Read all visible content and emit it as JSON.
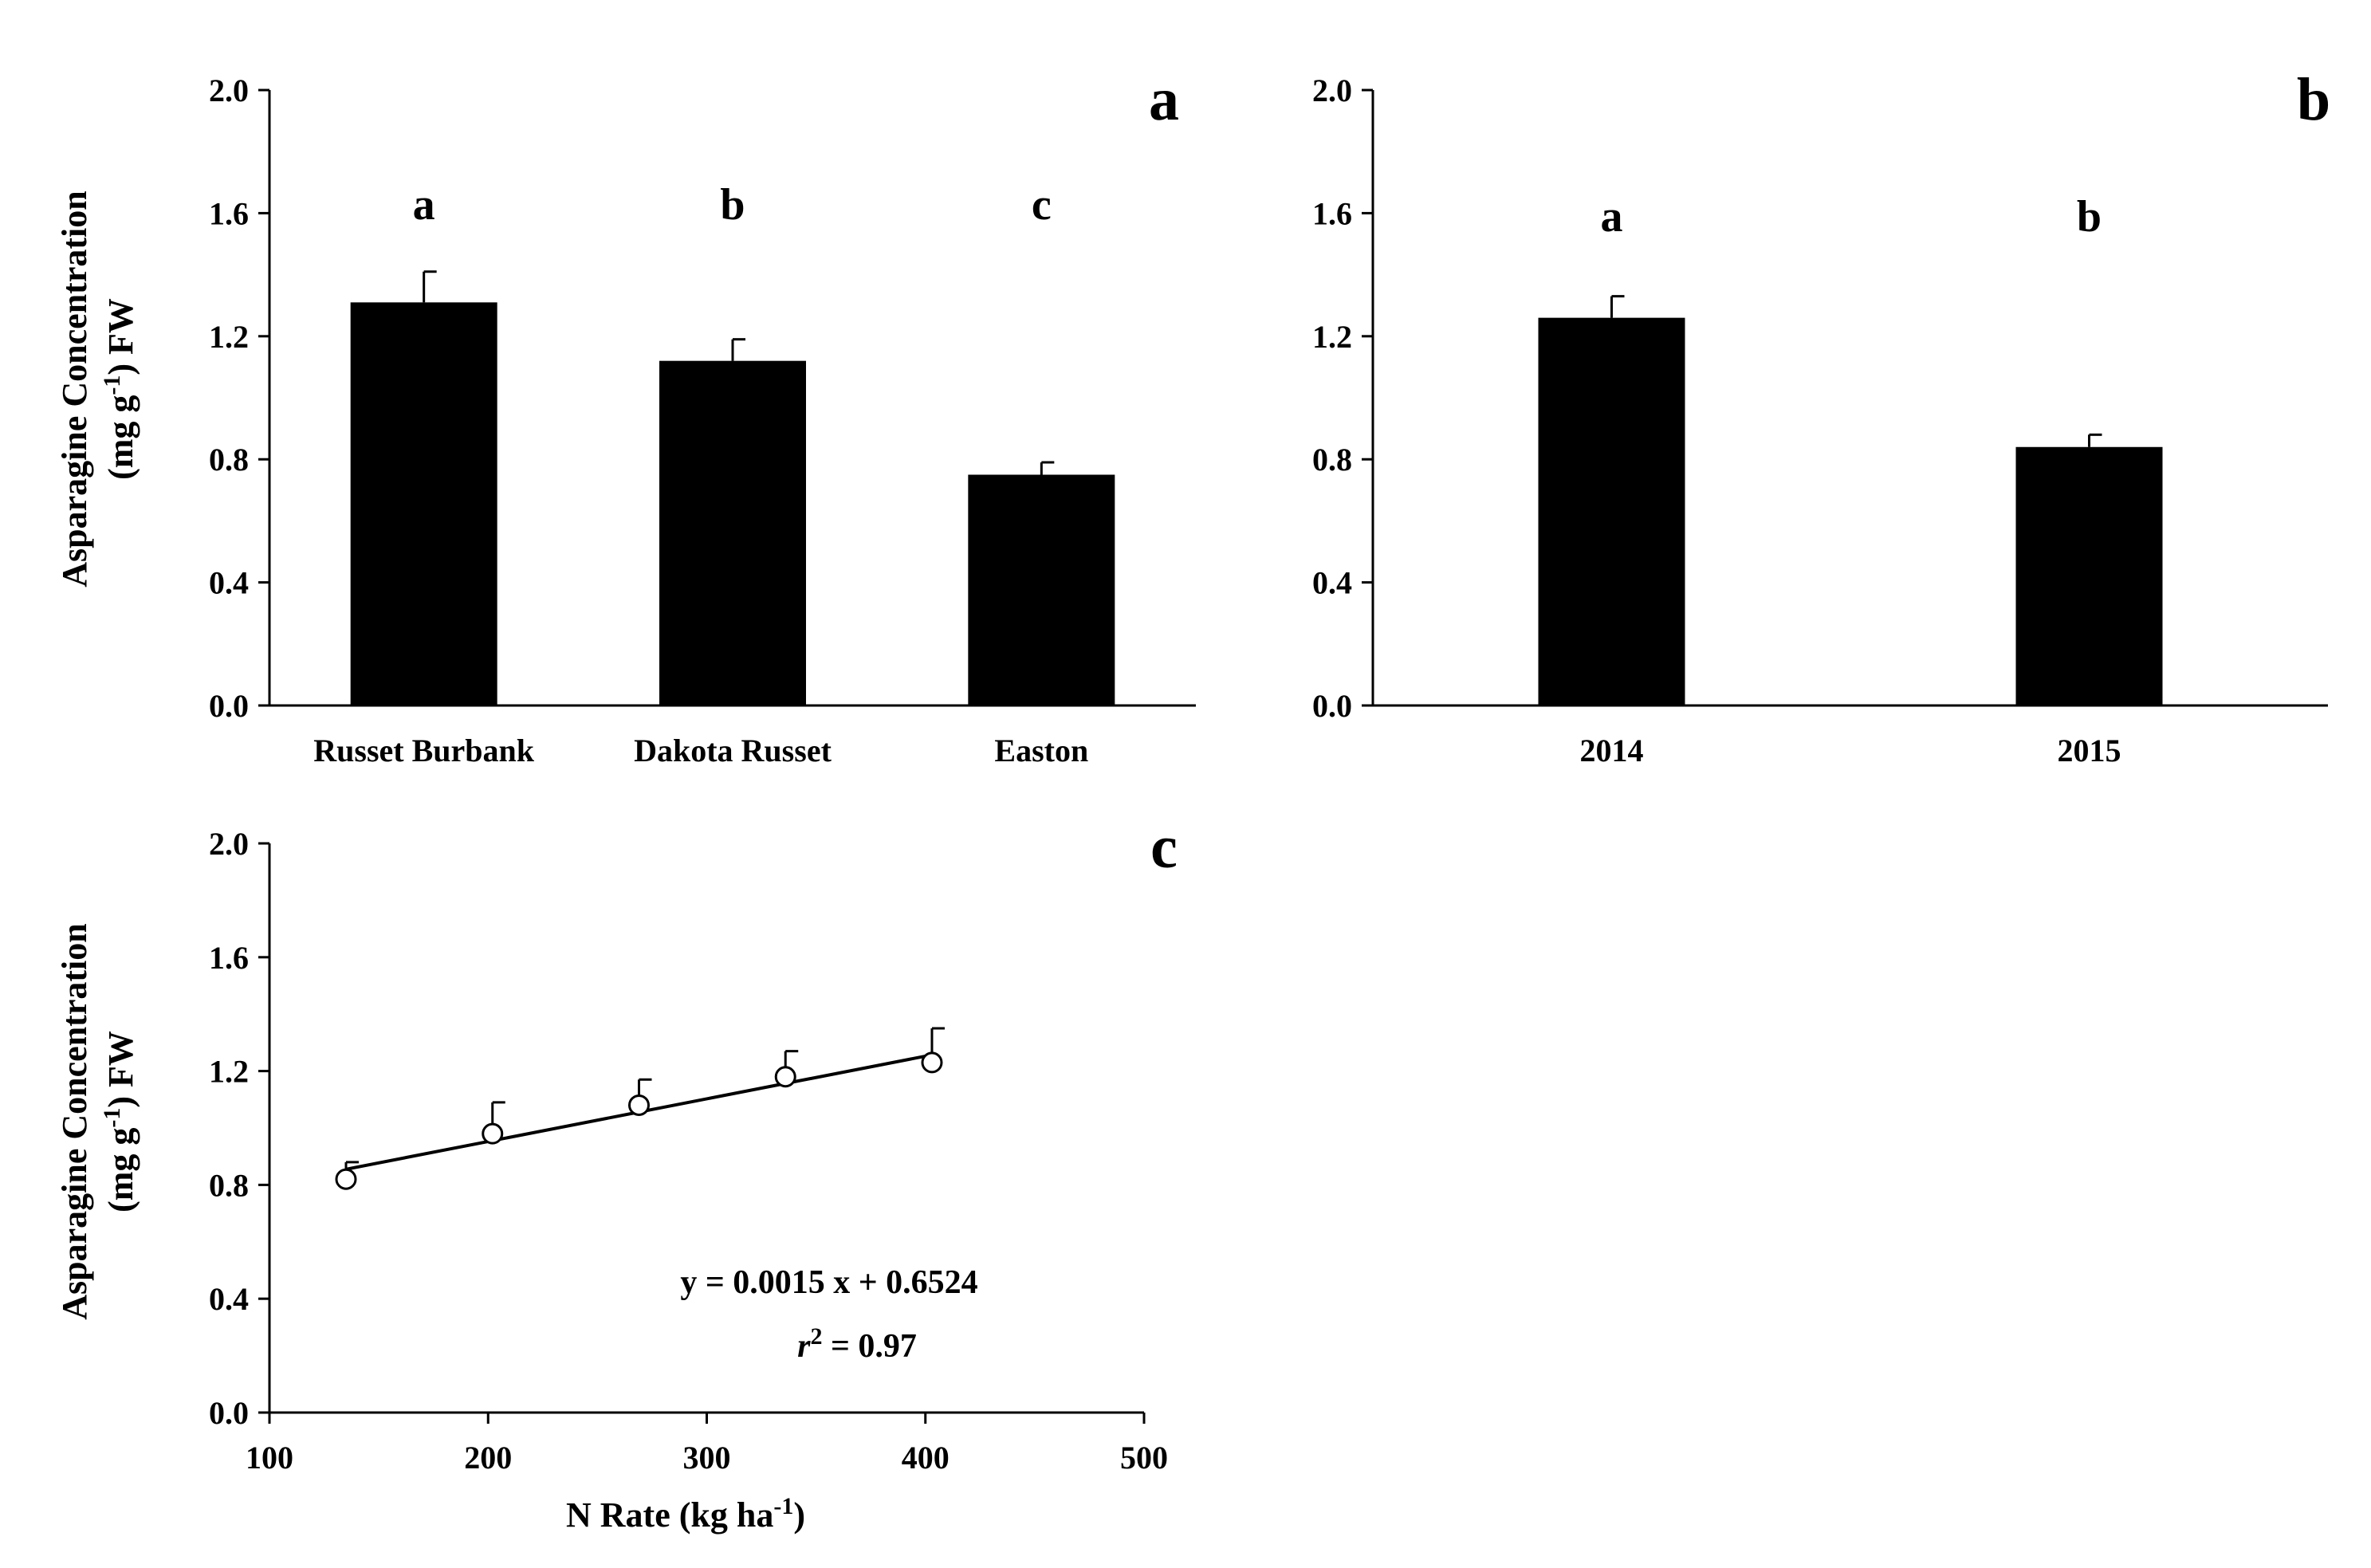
{
  "chart_data": [
    {
      "panel": "a",
      "type": "bar",
      "ylabel_line1": "Asparagine  Concentration",
      "ylabel_line2_prefix": "(mg g",
      "ylabel_line2_sup": "-1",
      "ylabel_line2_suffix": ") FW",
      "ylim": [
        0,
        2.0
      ],
      "yticks": [
        "0.0",
        "0.4",
        "0.8",
        "1.2",
        "1.6",
        "2.0"
      ],
      "ytick_values": [
        0,
        0.4,
        0.8,
        1.2,
        1.6,
        2.0
      ],
      "categories": [
        "Russet Burbank",
        "Dakota Russet",
        "Easton"
      ],
      "values": [
        1.31,
        1.12,
        0.75
      ],
      "errors": [
        0.1,
        0.07,
        0.04
      ],
      "significance": [
        "a",
        "b",
        "c"
      ]
    },
    {
      "panel": "b",
      "type": "bar",
      "ylim": [
        0,
        2.0
      ],
      "yticks": [
        "0.0",
        "0.4",
        "0.8",
        "1.2",
        "1.6",
        "2.0"
      ],
      "ytick_values": [
        0,
        0.4,
        0.8,
        1.2,
        1.6,
        2.0
      ],
      "categories": [
        "2014",
        "2015"
      ],
      "values": [
        1.26,
        0.84
      ],
      "errors": [
        0.07,
        0.04
      ],
      "significance": [
        "a",
        "b"
      ]
    },
    {
      "panel": "c",
      "type": "scatter",
      "ylabel_line1": "Asparagine  Concentration",
      "ylabel_line2_prefix": "(mg g",
      "ylabel_line2_sup": "-1",
      "ylabel_line2_suffix": ") FW",
      "xlabel_prefix": "N Rate (kg ha",
      "xlabel_sup": "-1",
      "xlabel_suffix": ")",
      "xlim": [
        100,
        500
      ],
      "ylim": [
        0,
        2.0
      ],
      "xticks": [
        "100",
        "200",
        "300",
        "400",
        "500"
      ],
      "xtick_values": [
        100,
        200,
        300,
        400,
        500
      ],
      "yticks": [
        "0.0",
        "0.4",
        "0.8",
        "1.2",
        "1.6",
        "2.0"
      ],
      "ytick_values": [
        0,
        0.4,
        0.8,
        1.2,
        1.6,
        2.0
      ],
      "x": [
        135,
        202,
        269,
        336,
        403
      ],
      "y": [
        0.82,
        0.98,
        1.08,
        1.18,
        1.23
      ],
      "errors": [
        0.06,
        0.11,
        0.09,
        0.09,
        0.12
      ],
      "fit": {
        "slope": 0.0015,
        "intercept": 0.6524,
        "x_range": [
          135,
          403
        ]
      },
      "equation": "y = 0.0015 x + 0.6524",
      "r2_label_var": "r",
      "r2_label_sup": "2",
      "r2_label_rest": " = 0.97"
    }
  ]
}
